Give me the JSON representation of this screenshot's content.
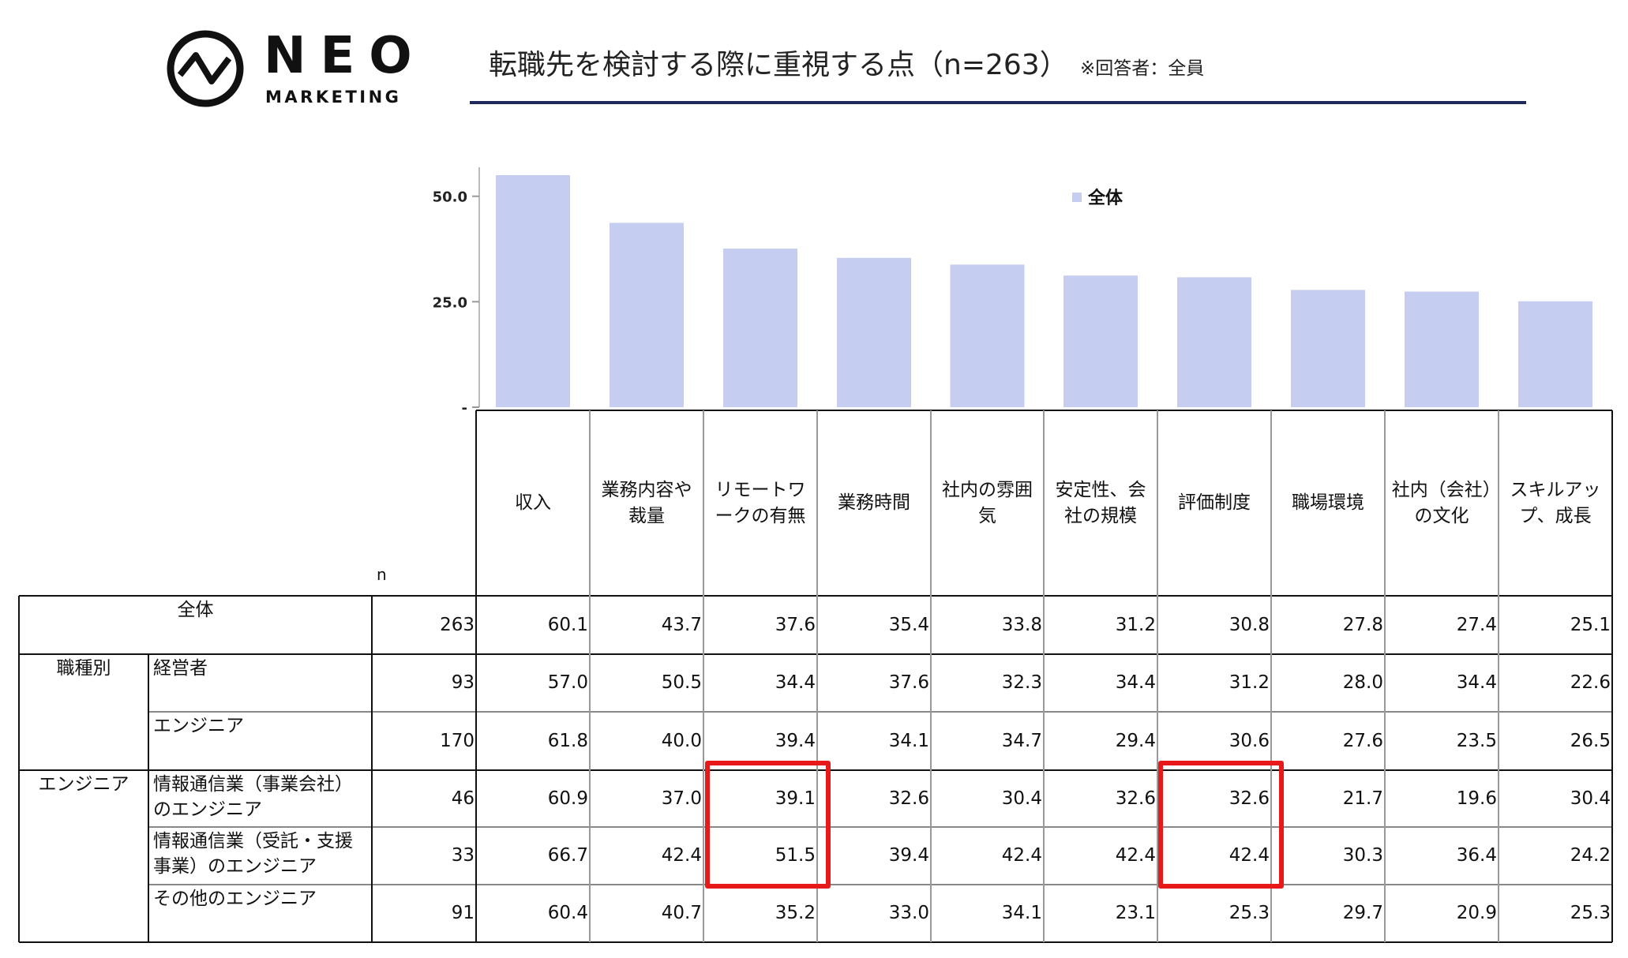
{
  "header": {
    "logo_name": "NEO",
    "logo_sub": "MARKETING",
    "title": "転職先を検討する際に重視する点（n=263）",
    "note": "※回答者：全員"
  },
  "chart_data": {
    "type": "bar",
    "series_name": "全体",
    "categories": [
      "収入",
      "業務内容や裁量",
      "リモートワークの有無",
      "業務時間",
      "社内の雰囲気",
      "安定性、会社の規模",
      "評価制度",
      "職場環境",
      "社内（会社）の文化",
      "スキルアップ、成長"
    ],
    "values": [
      60.1,
      43.7,
      37.6,
      35.4,
      33.8,
      31.2,
      30.8,
      27.8,
      27.4,
      25.1
    ],
    "color": "#c5cdf0",
    "ylim": [
      0,
      55
    ],
    "yticks": [
      {
        "value": 0,
        "label": "-"
      },
      {
        "value": 25,
        "label": "25.0"
      },
      {
        "value": 50,
        "label": "50.0"
      }
    ]
  },
  "table": {
    "n_header": "n",
    "total": {
      "label": "全体",
      "n": "263"
    },
    "groups": [
      {
        "label": "職種別",
        "rows": [
          {
            "label": "経営者",
            "n": "93",
            "values": [
              "57.0",
              "50.5",
              "34.4",
              "37.6",
              "32.3",
              "34.4",
              "31.2",
              "28.0",
              "34.4",
              "22.6"
            ]
          },
          {
            "label": "エンジニア",
            "n": "170",
            "values": [
              "61.8",
              "40.0",
              "39.4",
              "34.1",
              "34.7",
              "29.4",
              "30.6",
              "27.6",
              "23.5",
              "26.5"
            ]
          }
        ]
      },
      {
        "label": "エンジニア",
        "rows": [
          {
            "label": "情報通信業（事業会社）のエンジニア",
            "n": "46",
            "values": [
              "60.9",
              "37.0",
              "39.1",
              "32.6",
              "30.4",
              "32.6",
              "32.6",
              "21.7",
              "19.6",
              "30.4"
            ]
          },
          {
            "label": "情報通信業（受託・支援事業）のエンジニア",
            "n": "33",
            "values": [
              "66.7",
              "42.4",
              "51.5",
              "39.4",
              "42.4",
              "42.4",
              "42.4",
              "30.3",
              "36.4",
              "24.2"
            ]
          },
          {
            "label": "その他のエンジニア",
            "n": "91",
            "values": [
              "60.4",
              "40.7",
              "35.2",
              "33.0",
              "34.1",
              "23.1",
              "25.3",
              "29.7",
              "20.9",
              "25.3"
            ]
          }
        ]
      }
    ]
  }
}
